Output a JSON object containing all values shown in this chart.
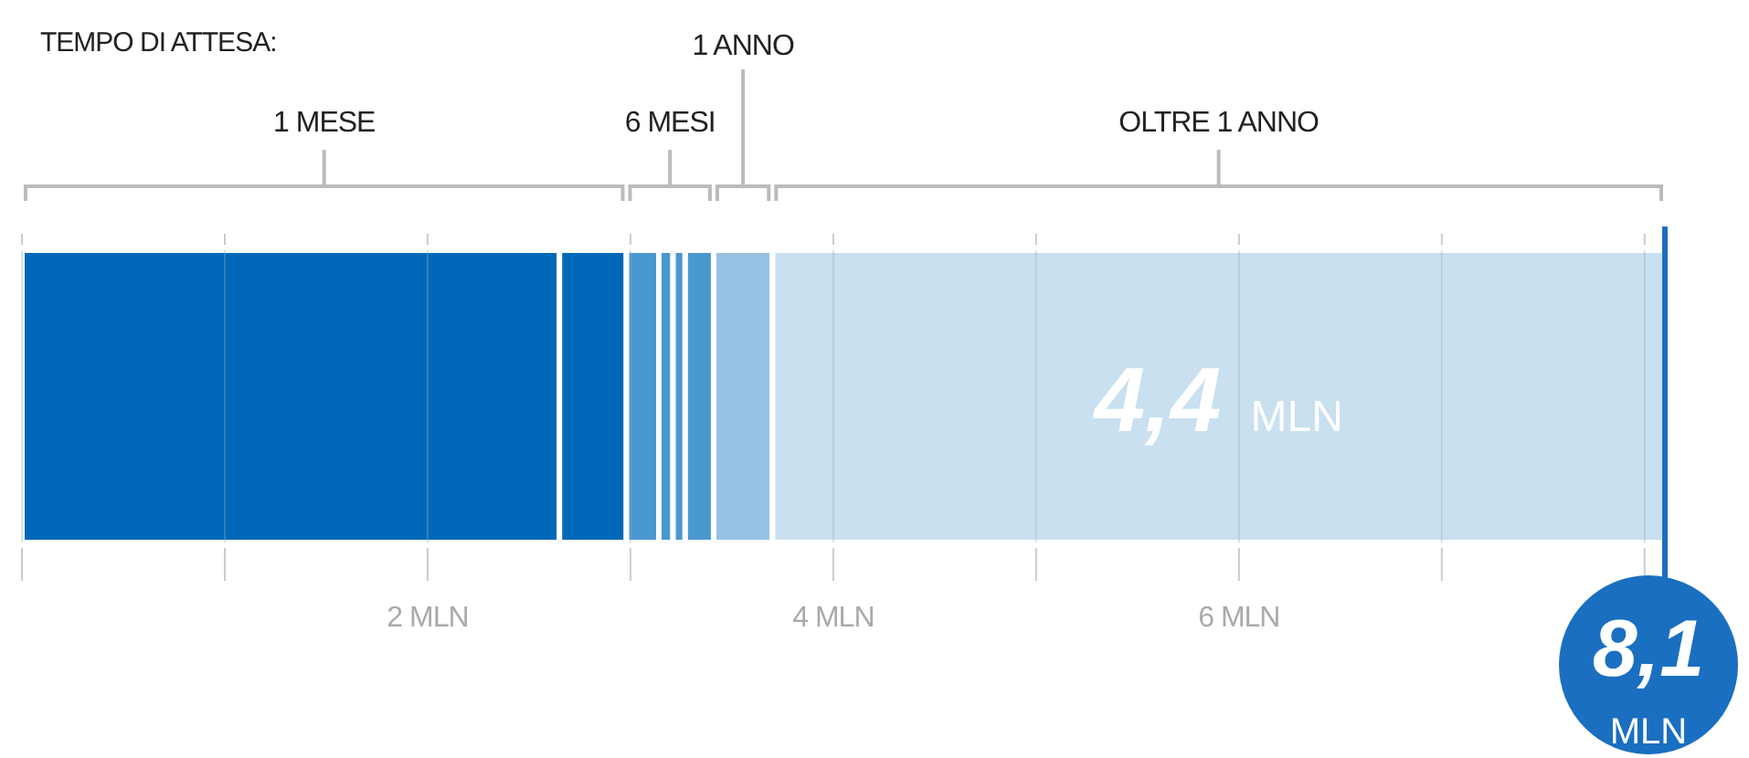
{
  "chart_data": {
    "type": "bar",
    "title": "TEMPO DI ATTESA:",
    "orientation": "horizontal",
    "stacked": true,
    "categories": [
      null
    ],
    "series": [
      {
        "color": "#0068b8",
        "values": [
          2.65
        ]
      },
      {
        "color": "#0068b8",
        "values": [
          0.33
        ]
      },
      {
        "color": "#4a98d0",
        "values": [
          0.16
        ]
      },
      {
        "color": "#4a98d0",
        "values": [
          0.07
        ]
      },
      {
        "color": "#4a98d0",
        "values": [
          0.06
        ]
      },
      {
        "color": "#4a98d0",
        "values": [
          0.14
        ]
      },
      {
        "color": "#96c3e4",
        "values": [
          0.29
        ]
      },
      {
        "color": "#c8e0f0",
        "values": [
          4.4
        ],
        "value_labels": [
          "4,4 MLN"
        ]
      }
    ],
    "xlim": [
      0,
      8.1
    ],
    "xticks": [
      {
        "value": 0,
        "label": null
      },
      {
        "value": 1,
        "label": null
      },
      {
        "value": 2,
        "label": "2 MLN"
      },
      {
        "value": 3,
        "label": null
      },
      {
        "value": 4,
        "label": "4 MLN"
      },
      {
        "value": 5,
        "label": null
      },
      {
        "value": 6,
        "label": "6 MLN"
      },
      {
        "value": 7,
        "label": null
      },
      {
        "value": 8,
        "label": null
      }
    ],
    "grid": "x",
    "annotations": [
      "1 MESE",
      "6 MESI",
      "1 ANNO",
      "OLTRE 1 ANNO"
    ],
    "ref_lines": [
      {
        "axis": "x",
        "value": 8.1,
        "label": "8,1 MLN",
        "color": "#1a6fc0"
      }
    ]
  }
}
